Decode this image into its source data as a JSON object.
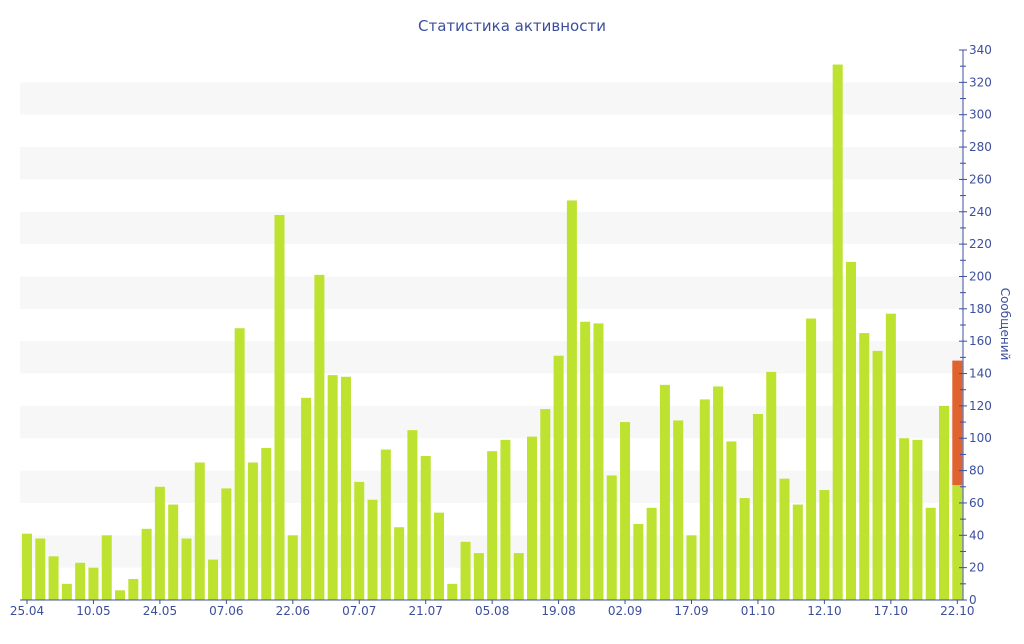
{
  "chart_data": {
    "type": "bar",
    "title": "Статистика активности",
    "ylabel": "Сообщений",
    "xlabel": "",
    "ylim": [
      0,
      340
    ],
    "y_axis_position": "right",
    "y_ticks": [
      0,
      20,
      40,
      60,
      80,
      100,
      120,
      140,
      160,
      180,
      200,
      220,
      240,
      260,
      280,
      300,
      320,
      340
    ],
    "grid": "alternating horizontal bands",
    "x_tick_labels": [
      "25.04",
      "10.05",
      "24.05",
      "07.06",
      "22.06",
      "07.07",
      "21.07",
      "05.08",
      "19.08",
      "02.09",
      "17.09",
      "01.10",
      "12.10",
      "17.10",
      "22.10"
    ],
    "values": [
      41,
      38,
      27,
      10,
      23,
      20,
      40,
      6,
      13,
      44,
      70,
      59,
      38,
      85,
      25,
      69,
      168,
      85,
      94,
      238,
      40,
      125,
      201,
      139,
      138,
      73,
      62,
      93,
      45,
      105,
      89,
      54,
      10,
      36,
      29,
      92,
      99,
      29,
      101,
      118,
      151,
      247,
      172,
      171,
      77,
      110,
      47,
      57,
      133,
      111,
      40,
      124,
      132,
      98,
      63,
      115,
      141,
      75,
      59,
      174,
      68,
      331,
      209,
      165,
      154,
      177,
      100,
      99,
      57,
      120,
      148
    ],
    "last_bar_split": {
      "base": 71,
      "total": 148
    },
    "colors": {
      "bar": "#bde22f",
      "highlight": "#e0622e",
      "axis": "#3c4f9c",
      "band": "#f7f7f7"
    }
  }
}
